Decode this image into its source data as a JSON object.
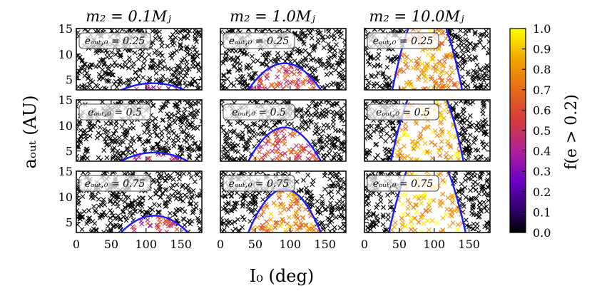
{
  "chart_data": {
    "type": "scatter",
    "column_titles": [
      "m₂ = 0.1Mⱼ",
      "m₂ = 1.0Mⱼ",
      "m₂ = 10.0Mⱼ"
    ],
    "row_annotations": [
      "eₒᵤₜ,₀ = 0.25",
      "eₒᵤₜ,₀ = 0.5",
      "eₒᵤₜ,₀ = 0.75"
    ],
    "xlabel": "I₀ (deg)",
    "ylabel": "aₒᵤₜ (AU)",
    "colorbar_label": "f(e > 0.2)",
    "xlim": [
      0,
      180
    ],
    "ylim": [
      3,
      15
    ],
    "xticks": [
      "0",
      "50",
      "100",
      "150"
    ],
    "xtick_values": [
      0,
      50,
      100,
      150
    ],
    "yticks": [
      "5",
      "10",
      "15"
    ],
    "ytick_values": [
      5,
      10,
      15
    ],
    "colorbar_ticks": [
      "0.0",
      "0.1",
      "0.2",
      "0.3",
      "0.4",
      "0.5",
      "0.6",
      "0.7",
      "0.8",
      "0.9",
      "1.0"
    ],
    "colorbar_range": [
      0.0,
      1.0
    ],
    "colormap": "gnuplot",
    "boundary_color": "#1a1aff",
    "panels": [
      {
        "row": 0,
        "col": 0,
        "region": {
          "center": 110,
          "halfwidth": 45,
          "apex": 4.3
        },
        "level": 0.35
      },
      {
        "row": 0,
        "col": 1,
        "region": {
          "center": 92,
          "halfwidth": 52,
          "apex": 8.2
        },
        "level": 0.55
      },
      {
        "row": 0,
        "col": 2,
        "region": {
          "center": 90,
          "halfwidth": 50,
          "apex": 20
        },
        "level": 0.8
      },
      {
        "row": 1,
        "col": 0,
        "region": {
          "center": 112,
          "halfwidth": 48,
          "apex": 4.7
        },
        "level": 0.45
      },
      {
        "row": 1,
        "col": 1,
        "region": {
          "center": 92,
          "halfwidth": 52,
          "apex": 9.6
        },
        "level": 0.6
      },
      {
        "row": 1,
        "col": 2,
        "region": {
          "center": 90,
          "halfwidth": 52,
          "apex": 20
        },
        "level": 0.88
      },
      {
        "row": 2,
        "col": 0,
        "region": {
          "center": 112,
          "halfwidth": 48,
          "apex": 6.3
        },
        "level": 0.55
      },
      {
        "row": 2,
        "col": 1,
        "region": {
          "center": 92,
          "halfwidth": 52,
          "apex": 11.5
        },
        "level": 0.75
      },
      {
        "row": 2,
        "col": 2,
        "region": {
          "center": 90,
          "halfwidth": 55,
          "apex": 20
        },
        "level": 0.92
      }
    ]
  }
}
